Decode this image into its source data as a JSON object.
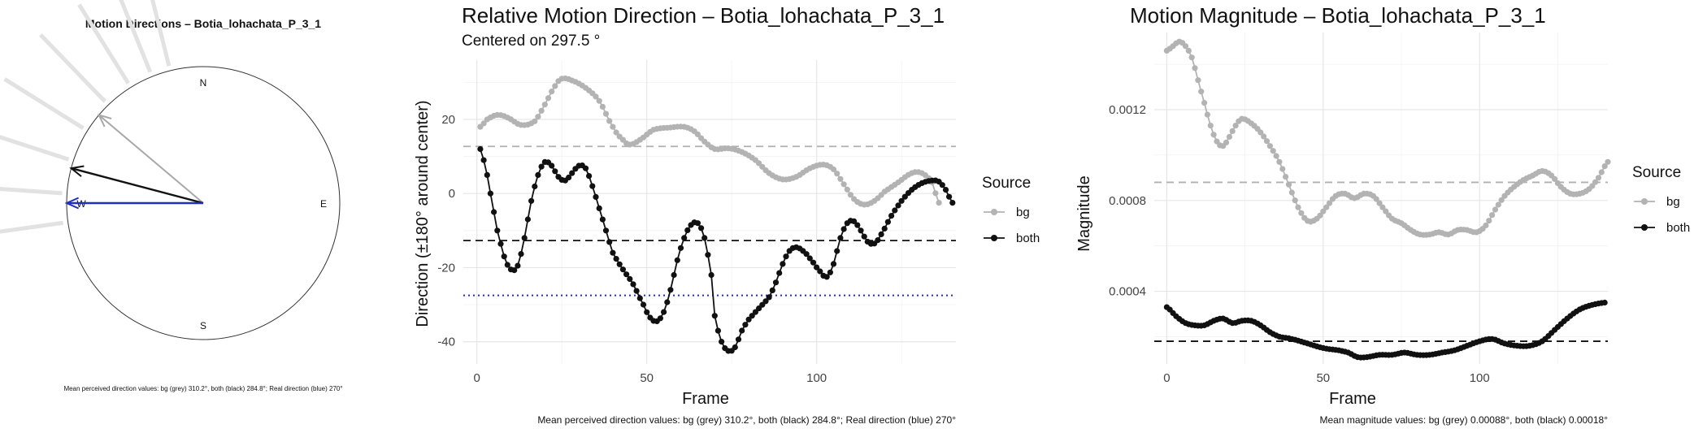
{
  "chart_data": [
    {
      "type": "polar-arrows",
      "title": "Motion Directions – Botia_lohachata_P_3_1",
      "compass": [
        "N",
        "E",
        "S",
        "W"
      ],
      "caption": "Mean perceived direction values: bg (grey) 310.2°, both (black) 284.8°; Real direction (blue) 270°",
      "arrows": [
        {
          "name": "bg",
          "direction_deg": 310.2,
          "color": "#a8a8a8"
        },
        {
          "name": "both",
          "direction_deg": 284.8,
          "color": "#111111"
        },
        {
          "name": "real",
          "direction_deg": 270,
          "color": "#1f2fbf"
        }
      ],
      "background_rays_deg": [
        262,
        274,
        288,
        302,
        316,
        328,
        338,
        346
      ]
    },
    {
      "type": "line",
      "title": "Relative Motion Direction – Botia_lohachata_P_3_1",
      "subtitle": "Centered on  297.5 °",
      "xlabel": "Frame",
      "ylabel": "Direction (±180° around center)",
      "xlim": [
        -4,
        141
      ],
      "ylim": [
        -46,
        36
      ],
      "xticks": [
        0,
        50,
        100
      ],
      "yticks": [
        -40,
        -20,
        0,
        20
      ],
      "caption": "Mean perceived direction values: bg (grey) 310.2°, both (black) 284.8°; Real direction (blue) 270°",
      "legend": {
        "title": "Source",
        "position": "right"
      },
      "hlines": [
        {
          "y": 12.7,
          "color": "#b0b0b0",
          "style": "dashed"
        },
        {
          "y": -12.7,
          "color": "#111111",
          "style": "dashed"
        },
        {
          "y": -27.5,
          "color": "#1f2fbf",
          "style": "dotted"
        }
      ],
      "series": [
        {
          "name": "bg",
          "color": "#b3b3b3",
          "knots": [
            [
              1,
              18
            ],
            [
              3,
              20
            ],
            [
              6,
              21.2
            ],
            [
              9,
              20.5
            ],
            [
              13,
              18.5
            ],
            [
              17,
              19.5
            ],
            [
              20,
              24
            ],
            [
              23,
              29
            ],
            [
              25,
              31
            ],
            [
              28,
              30.5
            ],
            [
              32,
              28.5
            ],
            [
              36,
              25
            ],
            [
              40,
              18
            ],
            [
              43,
              14.5
            ],
            [
              45,
              13.2
            ],
            [
              48,
              14.5
            ],
            [
              52,
              17.2
            ],
            [
              57,
              17.8
            ],
            [
              61,
              18
            ],
            [
              64,
              16.8
            ],
            [
              67,
              14
            ],
            [
              70,
              12
            ],
            [
              74,
              12.2
            ],
            [
              78,
              11.2
            ],
            [
              82,
              9
            ],
            [
              86,
              5.5
            ],
            [
              90,
              3.8
            ],
            [
              94,
              4.5
            ],
            [
              98,
              6.8
            ],
            [
              102,
              7.8
            ],
            [
              105,
              6.5
            ],
            [
              108,
              2.5
            ],
            [
              111,
              -1.5
            ],
            [
              114,
              -3
            ],
            [
              117,
              -2
            ],
            [
              120,
              0.5
            ],
            [
              124,
              3
            ],
            [
              128,
              5.5
            ],
            [
              131,
              5.5
            ],
            [
              134,
              3
            ],
            [
              136,
              -2.5
            ]
          ]
        },
        {
          "name": "both",
          "color": "#111111",
          "knots": [
            [
              1,
              12
            ],
            [
              2,
              9
            ],
            [
              3,
              5
            ],
            [
              4,
              0
            ],
            [
              5,
              -5
            ],
            [
              6,
              -10
            ],
            [
              8,
              -17
            ],
            [
              10,
              -20.5
            ],
            [
              12,
              -19.5
            ],
            [
              14,
              -12
            ],
            [
              16,
              -2
            ],
            [
              18,
              5
            ],
            [
              20,
              8.5
            ],
            [
              22,
              7.5
            ],
            [
              24,
              4.5
            ],
            [
              26,
              3.5
            ],
            [
              28,
              5.5
            ],
            [
              30,
              7.5
            ],
            [
              32,
              6.8
            ],
            [
              34,
              2
            ],
            [
              36,
              -4
            ],
            [
              38,
              -10
            ],
            [
              40,
              -16
            ],
            [
              43,
              -20.5
            ],
            [
              46,
              -24.5
            ],
            [
              49,
              -30
            ],
            [
              51,
              -33.5
            ],
            [
              53,
              -34.5
            ],
            [
              55,
              -32
            ],
            [
              57,
              -26
            ],
            [
              59,
              -18
            ],
            [
              61,
              -12
            ],
            [
              63,
              -8.5
            ],
            [
              65,
              -8
            ],
            [
              67,
              -12
            ],
            [
              69,
              -22
            ],
            [
              70,
              -33
            ],
            [
              72,
              -40
            ],
            [
              74,
              -42.5
            ],
            [
              76,
              -41.5
            ],
            [
              78,
              -37
            ],
            [
              80,
              -34
            ],
            [
              83,
              -31
            ],
            [
              86,
              -28
            ],
            [
              88,
              -24
            ],
            [
              90,
              -19
            ],
            [
              92,
              -15.5
            ],
            [
              94,
              -14.5
            ],
            [
              96,
              -15.5
            ],
            [
              98,
              -17.5
            ],
            [
              101,
              -21
            ],
            [
              103,
              -22.5
            ],
            [
              105,
              -19
            ],
            [
              107,
              -12
            ],
            [
              109,
              -8
            ],
            [
              111,
              -7.5
            ],
            [
              113,
              -10
            ],
            [
              115,
              -13
            ],
            [
              117,
              -13.5
            ],
            [
              119,
              -11
            ],
            [
              122,
              -6
            ],
            [
              125,
              -2
            ],
            [
              128,
              1
            ],
            [
              131,
              2.8
            ],
            [
              134,
              3.5
            ],
            [
              136,
              3.2
            ],
            [
              138,
              1
            ],
            [
              140,
              -2.5
            ]
          ]
        }
      ]
    },
    {
      "type": "line",
      "title": "Motion Magnitude – Botia_lohachata_P_3_1",
      "xlabel": "Frame",
      "ylabel": "Magnitude",
      "xlim": [
        -4,
        141
      ],
      "ylim": [
        8e-05,
        0.00154
      ],
      "xticks": [
        0,
        50,
        100
      ],
      "yticks": [
        0.0004,
        0.0008,
        0.0012
      ],
      "ytick_labels": [
        "0.0004",
        "0.0008",
        "0.0012"
      ],
      "caption": "Mean magnitude values: bg (grey) 0.00088°, both (black) 0.00018°",
      "legend": {
        "title": "Source",
        "position": "right"
      },
      "hlines": [
        {
          "y": 0.00088,
          "color": "#b0b0b0",
          "style": "dashed"
        },
        {
          "y": 0.00018,
          "color": "#111111",
          "style": "dashed"
        }
      ],
      "series": [
        {
          "name": "bg",
          "color": "#b3b3b3",
          "knots": [
            [
              0,
              0.00146
            ],
            [
              2,
              0.00148
            ],
            [
              4,
              0.0015
            ],
            [
              6,
              0.00148
            ],
            [
              8,
              0.00143
            ],
            [
              10,
              0.00133
            ],
            [
              12,
              0.00123
            ],
            [
              14,
              0.00113
            ],
            [
              16,
              0.00106
            ],
            [
              18,
              0.00104
            ],
            [
              20,
              0.00108
            ],
            [
              22,
              0.00113
            ],
            [
              24,
              0.00116
            ],
            [
              27,
              0.00114
            ],
            [
              30,
              0.0011
            ],
            [
              33,
              0.00104
            ],
            [
              36,
              0.00097
            ],
            [
              39,
              0.00087
            ],
            [
              42,
              0.00077
            ],
            [
              45,
              0.00071
            ],
            [
              48,
              0.00072
            ],
            [
              51,
              0.00077
            ],
            [
              54,
              0.00082
            ],
            [
              57,
              0.00083
            ],
            [
              60,
              0.00081
            ],
            [
              63,
              0.00083
            ],
            [
              66,
              0.00082
            ],
            [
              69,
              0.00077
            ],
            [
              72,
              0.00072
            ],
            [
              75,
              0.0007
            ],
            [
              78,
              0.00067
            ],
            [
              81,
              0.00065
            ],
            [
              84,
              0.00065
            ],
            [
              87,
              0.00066
            ],
            [
              90,
              0.00065
            ],
            [
              93,
              0.00067
            ],
            [
              96,
              0.00067
            ],
            [
              99,
              0.00066
            ],
            [
              102,
              0.00069
            ],
            [
              105,
              0.00076
            ],
            [
              108,
              0.00082
            ],
            [
              111,
              0.00086
            ],
            [
              114,
              0.00089
            ],
            [
              117,
              0.00091
            ],
            [
              120,
              0.00093
            ],
            [
              123,
              0.00091
            ],
            [
              126,
              0.00086
            ],
            [
              129,
              0.00083
            ],
            [
              132,
              0.00083
            ],
            [
              135,
              0.00085
            ],
            [
              138,
              0.0009
            ],
            [
              141,
              0.00097
            ]
          ]
        },
        {
          "name": "both",
          "color": "#111111",
          "knots": [
            [
              0,
              0.00033
            ],
            [
              3,
              0.00029
            ],
            [
              6,
              0.00026
            ],
            [
              9,
              0.00025
            ],
            [
              12,
              0.00025
            ],
            [
              15,
              0.00027
            ],
            [
              18,
              0.00028
            ],
            [
              21,
              0.00026
            ],
            [
              24,
              0.00027
            ],
            [
              27,
              0.00027
            ],
            [
              30,
              0.00025
            ],
            [
              33,
              0.00022
            ],
            [
              36,
              0.0002
            ],
            [
              40,
              0.00019
            ],
            [
              45,
              0.00017
            ],
            [
              50,
              0.00015
            ],
            [
              55,
              0.00014
            ],
            [
              58,
              0.00013
            ],
            [
              61,
              0.00011
            ],
            [
              64,
              0.00011
            ],
            [
              68,
              0.00012
            ],
            [
              72,
              0.00012
            ],
            [
              76,
              0.00013
            ],
            [
              80,
              0.00012
            ],
            [
              84,
              0.00012
            ],
            [
              88,
              0.00013
            ],
            [
              92,
              0.00014
            ],
            [
              96,
              0.00016
            ],
            [
              100,
              0.00018
            ],
            [
              104,
              0.00019
            ],
            [
              108,
              0.00017
            ],
            [
              112,
              0.00016
            ],
            [
              116,
              0.00016
            ],
            [
              120,
              0.00018
            ],
            [
              124,
              0.00023
            ],
            [
              128,
              0.00028
            ],
            [
              132,
              0.00032
            ],
            [
              136,
              0.00034
            ],
            [
              140,
              0.00035
            ]
          ]
        }
      ]
    }
  ]
}
